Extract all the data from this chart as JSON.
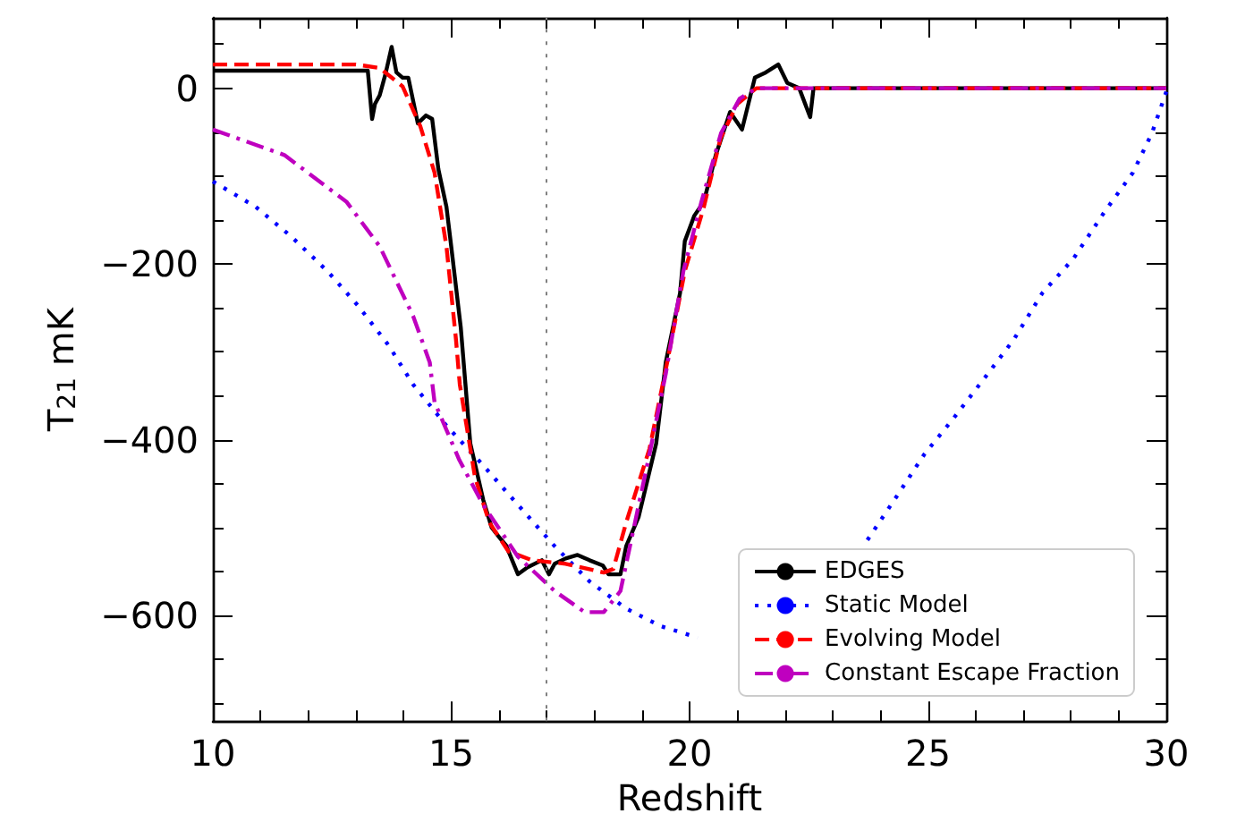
{
  "chart_data": {
    "type": "line",
    "xlabel": "Redshift",
    "ylabel": "T$_{21}$ mK",
    "xlim": [
      10,
      30
    ],
    "xticks": [
      10,
      15,
      20,
      25,
      30
    ],
    "ylim": [
      -720,
      80
    ],
    "yticks": [
      -600,
      -400,
      -200,
      0
    ],
    "grid": false,
    "legend": "bottom right",
    "marker": "none",
    "ref_lines": [
      {
        "axis": "x",
        "value": 17,
        "color": "#808080",
        "line_style": "dotted"
      }
    ],
    "series": [
      {
        "name": "EDGES",
        "color": "#000000",
        "line_style": "solid",
        "x": [
          10,
          13.25,
          13.34,
          13.4,
          13.5,
          13.62,
          13.75,
          13.85,
          13.98,
          14.1,
          14.3,
          14.47,
          14.6,
          14.73,
          14.9,
          15.0,
          15.2,
          15.4,
          15.67,
          15.85,
          16.04,
          16.15,
          16.4,
          16.6,
          16.9,
          17.05,
          17.17,
          17.4,
          17.65,
          17.9,
          18.18,
          18.3,
          18.55,
          18.67,
          18.93,
          19.3,
          19.5,
          19.8,
          19.9,
          20.1,
          20.3,
          20.55,
          20.85,
          21.1,
          21.37,
          21.6,
          21.86,
          22.05,
          22.3,
          22.53,
          22.6,
          23,
          30
        ],
        "values": [
          20,
          20,
          -35,
          -18,
          -8,
          16,
          47,
          18,
          12,
          12,
          -40,
          -31,
          -35,
          -92,
          -135,
          -180,
          -272,
          -404,
          -468,
          -500,
          -513,
          -520,
          -553,
          -545,
          -537,
          -553,
          -541,
          -535,
          -531,
          -537,
          -543,
          -553,
          -553,
          -521,
          -488,
          -404,
          -312,
          -233,
          -174,
          -145,
          -129,
          -76,
          -27,
          -47,
          12,
          18,
          27,
          6,
          0,
          -33,
          0,
          0,
          0
        ]
      },
      {
        "name": "Static Model",
        "color": "#0000ff",
        "line_style": "dotted",
        "x": [
          10,
          10.9,
          11.65,
          12.4,
          13.04,
          13.68,
          14.2,
          14.9,
          15.67,
          16.4,
          17.17,
          17.9,
          18.67,
          19.4,
          20.17,
          22,
          23.73,
          24.3,
          24.93,
          25.53,
          26.17,
          26.8,
          27.4,
          28.05,
          28.7,
          29.3,
          29.7,
          30
        ],
        "values": [
          -106,
          -135,
          -169,
          -208,
          -247,
          -292,
          -337,
          -384,
          -429,
          -474,
          -521,
          -561,
          -592,
          -612,
          -625,
          null,
          -514,
          -468,
          -416,
          -376,
          -331,
          -286,
          -233,
          -194,
          -141,
          -96,
          -51,
          -4
        ]
      },
      {
        "name": "Evolving Model",
        "color": "#ff0000",
        "line_style": "dashed",
        "x": [
          10,
          13,
          13.5,
          13.98,
          14.35,
          14.65,
          14.9,
          15.1,
          15.18,
          15.5,
          15.8,
          16.2,
          16.7,
          17.4,
          18.2,
          18.4,
          18.67,
          19.16,
          19.53,
          19.9,
          20.3,
          20.65,
          21.0,
          21.4,
          30
        ],
        "values": [
          27,
          27,
          23,
          2,
          -43,
          -96,
          -180,
          -286,
          -337,
          -443,
          -494,
          -527,
          -537,
          -541,
          -551,
          -547,
          -494,
          -410,
          -312,
          -208,
          -135,
          -57,
          -18,
          0,
          0
        ]
      },
      {
        "name": "Constant Escape Fraction",
        "color": "#bf00bf",
        "line_style": "dashdot",
        "x": [
          10,
          11.5,
          12.8,
          13.5,
          14.2,
          14.55,
          14.65,
          15.17,
          15.67,
          16.4,
          17.17,
          17.8,
          18.2,
          18.55,
          18.8,
          19.16,
          19.5,
          19.87,
          20.25,
          20.66,
          21.05,
          21.4,
          30
        ],
        "values": [
          -47,
          -76,
          -129,
          -180,
          -259,
          -312,
          -357,
          -423,
          -474,
          -533,
          -572,
          -596,
          -596,
          -572,
          -508,
          -416,
          -325,
          -208,
          -129,
          -51,
          -12,
          0,
          0
        ]
      }
    ]
  }
}
